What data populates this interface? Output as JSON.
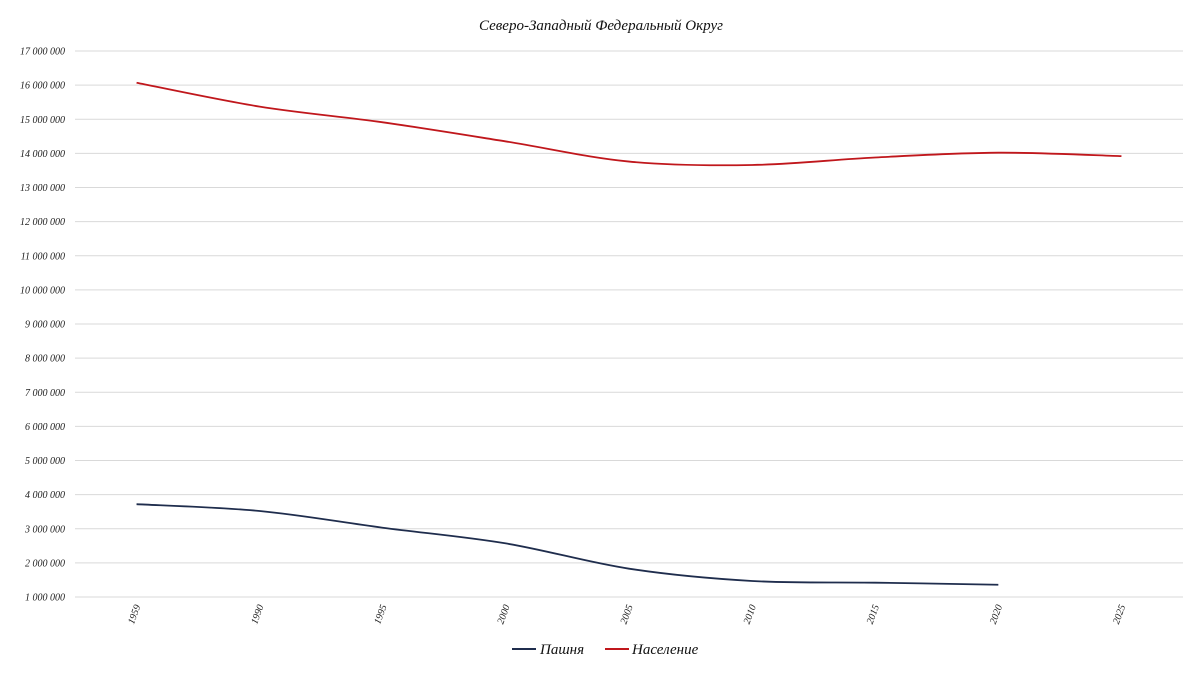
{
  "chart_data": {
    "type": "line",
    "title": "Северо-Западный Федеральный Округ",
    "xlabel": "",
    "ylabel": "",
    "categories": [
      "1959",
      "1990",
      "1995",
      "2000",
      "2005",
      "2010",
      "2015",
      "2020",
      "2025"
    ],
    "y_ticks": [
      "1 000 000",
      "2 000 000",
      "3 000 000",
      "4 000 000",
      "5 000 000",
      "6 000 000",
      "7 000 000",
      "8 000 000",
      "9 000 000",
      "10 000 000",
      "11 000 000",
      "12 000 000",
      "13 000 000",
      "14 000 000",
      "15 000 000",
      "16 000 000",
      "17 000 000"
    ],
    "ylim": [
      1000000,
      17000000
    ],
    "grid": true,
    "legend_position": "bottom",
    "series": [
      {
        "name": "Пашня",
        "color": "#1f2d4d",
        "values": [
          3720000,
          3520000,
          3030000,
          2570000,
          1830000,
          1470000,
          1420000,
          1360000,
          null
        ]
      },
      {
        "name": "Население",
        "color": "#c0171c",
        "values": [
          16070000,
          15370000,
          14910000,
          14350000,
          13760000,
          13660000,
          13880000,
          14020000,
          13920000
        ]
      }
    ]
  }
}
